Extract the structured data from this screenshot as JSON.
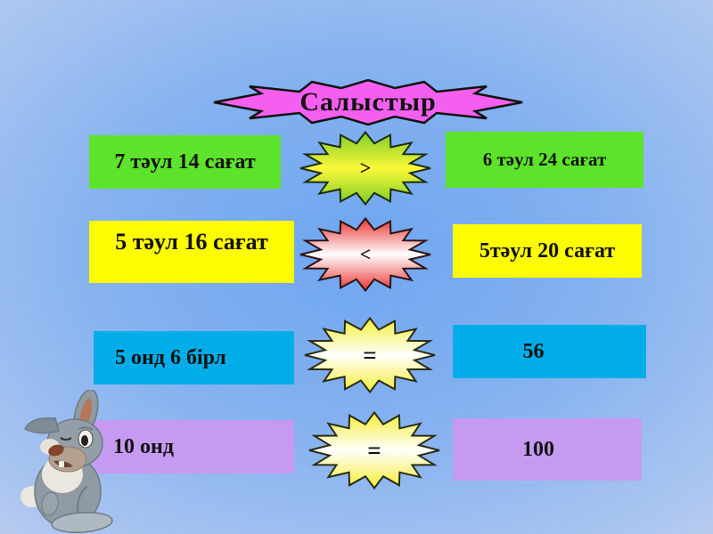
{
  "slide": {
    "title": "Салыстыр",
    "title_fill": "#f55ff0"
  },
  "rows": [
    {
      "left": "7 тәул 14 сағат",
      "operator": ">",
      "right": "6 тәул 24 сағат",
      "box_color": "#5de32b",
      "star": {
        "edge": "#7ecd2a",
        "mid": "#fcf838"
      }
    },
    {
      "left": "5 тәул 16 сағат",
      "operator": "<",
      "right": "5тәул 20 сағат",
      "box_color": "#fdfc00",
      "star": {
        "edge": "#ea3434",
        "mid": "#ffffff"
      }
    },
    {
      "left": "5 онд 6 бірл",
      "operator": "=",
      "right": "56",
      "box_color": "#00ade9",
      "star": {
        "edge": "#f5ee35",
        "mid": "#ffffff"
      }
    },
    {
      "left": "10 онд",
      "operator": "=",
      "right": "100",
      "box_color": "#c79af2",
      "star": {
        "edge": "#f5ee35",
        "mid": "#ffffff"
      }
    }
  ],
  "icons": {
    "rabbit": "rabbit-illustration"
  }
}
